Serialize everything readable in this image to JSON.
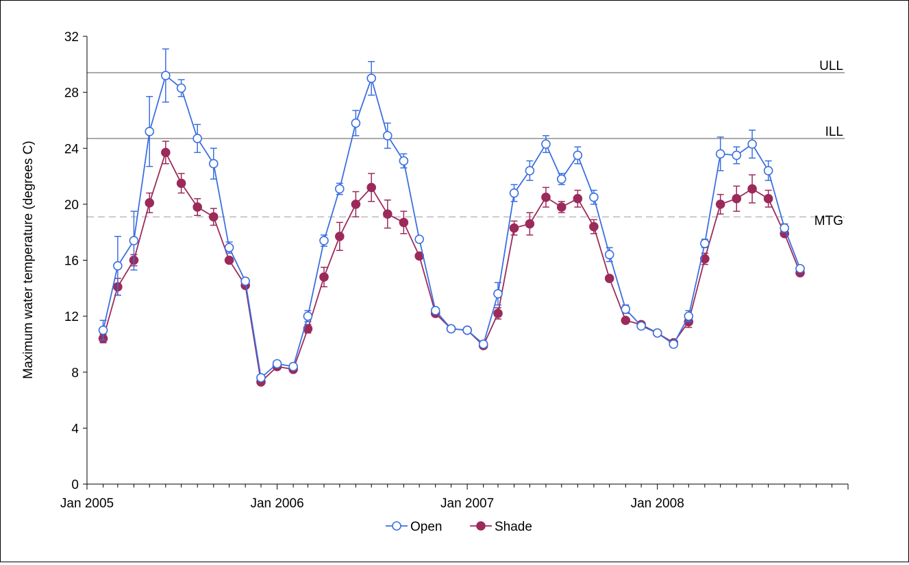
{
  "chart_data": {
    "type": "line",
    "ylabel": "Maximum water temperature (degrees C)",
    "ylim": [
      0,
      32
    ],
    "yticks": [
      0,
      4,
      8,
      12,
      16,
      20,
      24,
      28,
      32
    ],
    "xlim": [
      "2005-01-01",
      "2009-01-01"
    ],
    "xtick_labels": [
      {
        "date": "2005-01-01",
        "label": "Jan 2005"
      },
      {
        "date": "2006-01-01",
        "label": "Jan 2006"
      },
      {
        "date": "2007-01-01",
        "label": "Jan 2007"
      },
      {
        "date": "2008-01-01",
        "label": "Jan 2008"
      }
    ],
    "grid": false,
    "legend_position": "bottom",
    "reference_lines": [
      {
        "label": "ULL",
        "value": 29.4,
        "style": "solid"
      },
      {
        "label": "ILL",
        "value": 24.7,
        "style": "solid"
      },
      {
        "label": "MTG",
        "value": 19.1,
        "style": "dashed"
      }
    ],
    "series": [
      {
        "name": "Open",
        "color": "#3b6fe0",
        "marker": "open-circle",
        "x": [
          "2005-02-01",
          "2005-03-01",
          "2005-04-01",
          "2005-05-01",
          "2005-06-01",
          "2005-07-01",
          "2005-08-01",
          "2005-09-01",
          "2005-10-01",
          "2005-11-01",
          "2005-12-01",
          "2006-01-01",
          "2006-02-01",
          "2006-03-01",
          "2006-04-01",
          "2006-05-01",
          "2006-06-01",
          "2006-07-01",
          "2006-08-01",
          "2006-09-01",
          "2006-10-01",
          "2006-11-01",
          "2006-12-01",
          "2007-01-01",
          "2007-02-01",
          "2007-03-01",
          "2007-04-01",
          "2007-05-01",
          "2007-06-01",
          "2007-07-01",
          "2007-08-01",
          "2007-09-01",
          "2007-10-01",
          "2007-11-01",
          "2007-12-01",
          "2008-01-01",
          "2008-02-01",
          "2008-03-01",
          "2008-04-01",
          "2008-05-01",
          "2008-06-01",
          "2008-07-01",
          "2008-08-01",
          "2008-09-01",
          "2008-10-01"
        ],
        "values": [
          11.0,
          15.6,
          17.4,
          25.2,
          29.2,
          28.3,
          24.7,
          22.9,
          16.9,
          14.5,
          7.6,
          8.6,
          8.4,
          12.0,
          17.4,
          21.1,
          25.8,
          29.0,
          24.9,
          23.1,
          17.5,
          12.4,
          11.1,
          11.0,
          10.0,
          13.6,
          20.8,
          22.4,
          24.3,
          21.8,
          23.5,
          20.5,
          16.4,
          12.5,
          11.3,
          10.8,
          10.0,
          12.0,
          17.2,
          23.6,
          23.5,
          24.3,
          22.4,
          18.3,
          15.4
        ],
        "error": [
          0.7,
          2.1,
          2.1,
          2.5,
          1.9,
          0.6,
          1.0,
          1.1,
          0.4,
          0.2,
          0.2,
          0.2,
          0.2,
          0.4,
          0.4,
          0.4,
          0.9,
          1.2,
          0.9,
          0.5,
          0.2,
          0.2,
          0.2,
          0.2,
          0.2,
          0.8,
          0.6,
          0.7,
          0.6,
          0.4,
          0.6,
          0.5,
          0.5,
          0.3,
          0.2,
          0.2,
          0.2,
          0.4,
          0.3,
          1.2,
          0.6,
          1.0,
          0.7,
          0.3,
          0.2
        ]
      },
      {
        "name": "Shade",
        "color": "#9b2a5a",
        "marker": "filled-circle",
        "x": [
          "2005-02-01",
          "2005-03-01",
          "2005-04-01",
          "2005-05-01",
          "2005-06-01",
          "2005-07-01",
          "2005-08-01",
          "2005-09-01",
          "2005-10-01",
          "2005-11-01",
          "2005-12-01",
          "2006-01-01",
          "2006-02-01",
          "2006-03-01",
          "2006-04-01",
          "2006-05-01",
          "2006-06-01",
          "2006-07-01",
          "2006-08-01",
          "2006-09-01",
          "2006-10-01",
          "2006-11-01",
          "2006-12-01",
          "2007-01-01",
          "2007-02-01",
          "2007-03-01",
          "2007-04-01",
          "2007-05-01",
          "2007-06-01",
          "2007-07-01",
          "2007-08-01",
          "2007-09-01",
          "2007-10-01",
          "2007-11-01",
          "2007-12-01",
          "2008-01-01",
          "2008-02-01",
          "2008-03-01",
          "2008-04-01",
          "2008-05-01",
          "2008-06-01",
          "2008-07-01",
          "2008-08-01",
          "2008-09-01",
          "2008-10-01"
        ],
        "values": [
          10.4,
          14.1,
          16.0,
          20.1,
          23.7,
          21.5,
          19.8,
          19.1,
          16.0,
          14.2,
          7.3,
          8.4,
          8.2,
          11.1,
          14.8,
          17.7,
          20.0,
          21.2,
          19.3,
          18.7,
          16.3,
          12.2,
          11.1,
          11.0,
          9.9,
          12.2,
          18.3,
          18.6,
          20.5,
          19.8,
          20.4,
          18.4,
          14.7,
          11.7,
          11.4,
          10.8,
          10.1,
          11.6,
          16.1,
          20.0,
          20.4,
          21.1,
          20.4,
          17.9,
          15.1
        ],
        "error": [
          0.3,
          0.6,
          0.4,
          0.7,
          0.8,
          0.7,
          0.6,
          0.6,
          0.2,
          0.2,
          0.2,
          0.2,
          0.2,
          0.3,
          0.7,
          1.0,
          0.9,
          1.0,
          1.0,
          0.8,
          0.2,
          0.2,
          0.2,
          0.2,
          0.2,
          0.4,
          0.5,
          0.8,
          0.7,
          0.4,
          0.6,
          0.5,
          0.2,
          0.2,
          0.2,
          0.2,
          0.2,
          0.4,
          0.4,
          0.7,
          0.9,
          1.0,
          0.6,
          0.2,
          0.2
        ]
      }
    ]
  }
}
